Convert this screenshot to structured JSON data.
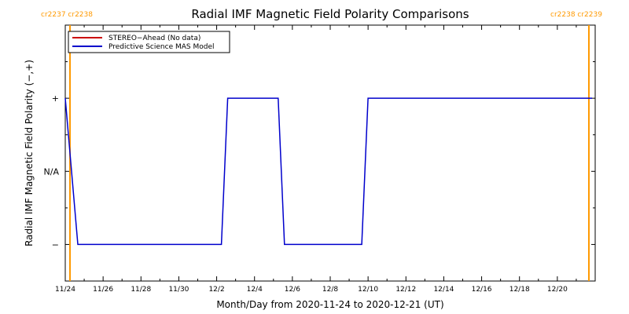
{
  "chart_data": {
    "type": "line",
    "title": "Radial IMF Magnetic Field Polarity Comparisons",
    "xlabel": "Month/Day from 2020-11-24 to 2020-12-21 (UT)",
    "ylabel": "Radial IMF Magnetic Field Polarity (−,+)",
    "x_range": [
      "2020-11-24",
      "2020-12-21"
    ],
    "x_ticks": [
      "11/24",
      "11/26",
      "11/28",
      "11/30",
      "12/2",
      "12/4",
      "12/6",
      "12/8",
      "12/10",
      "12/12",
      "12/14",
      "12/16",
      "12/18",
      "12/20"
    ],
    "y_ticks": [
      "+",
      "N/A",
      "−"
    ],
    "y_tick_values": [
      1,
      0,
      -1
    ],
    "ylim": [
      -1.5,
      2
    ],
    "carrington_markers": [
      {
        "x": "2020-11-24T06:00",
        "label": "cr2237 cr2238",
        "position": "left"
      },
      {
        "x": "2020-12-21T16:00",
        "label": "cr2238 cr2239",
        "position": "right"
      }
    ],
    "legend": [
      {
        "name": "STEREO−Ahead (No data)",
        "color": "#cc0000"
      },
      {
        "name": "Predictive Science MAS Model",
        "color": "#0000cc"
      }
    ],
    "series": [
      {
        "name": "Predictive Science MAS Model",
        "color": "#0000cc",
        "points": [
          [
            "2020-11-24T00:00",
            1
          ],
          [
            "2020-11-24T16:00",
            -1
          ],
          [
            "2020-12-02T06:00",
            -1
          ],
          [
            "2020-12-02T14:00",
            1
          ],
          [
            "2020-12-05T06:00",
            1
          ],
          [
            "2020-12-05T14:00",
            -1
          ],
          [
            "2020-12-09T16:00",
            -1
          ],
          [
            "2020-12-10T00:00",
            1
          ],
          [
            "2020-12-21T20:00",
            1
          ]
        ]
      }
    ],
    "grid": false,
    "legend_position": "top-left"
  },
  "colors": {
    "marker": "#ff9900",
    "axis": "#000000"
  }
}
